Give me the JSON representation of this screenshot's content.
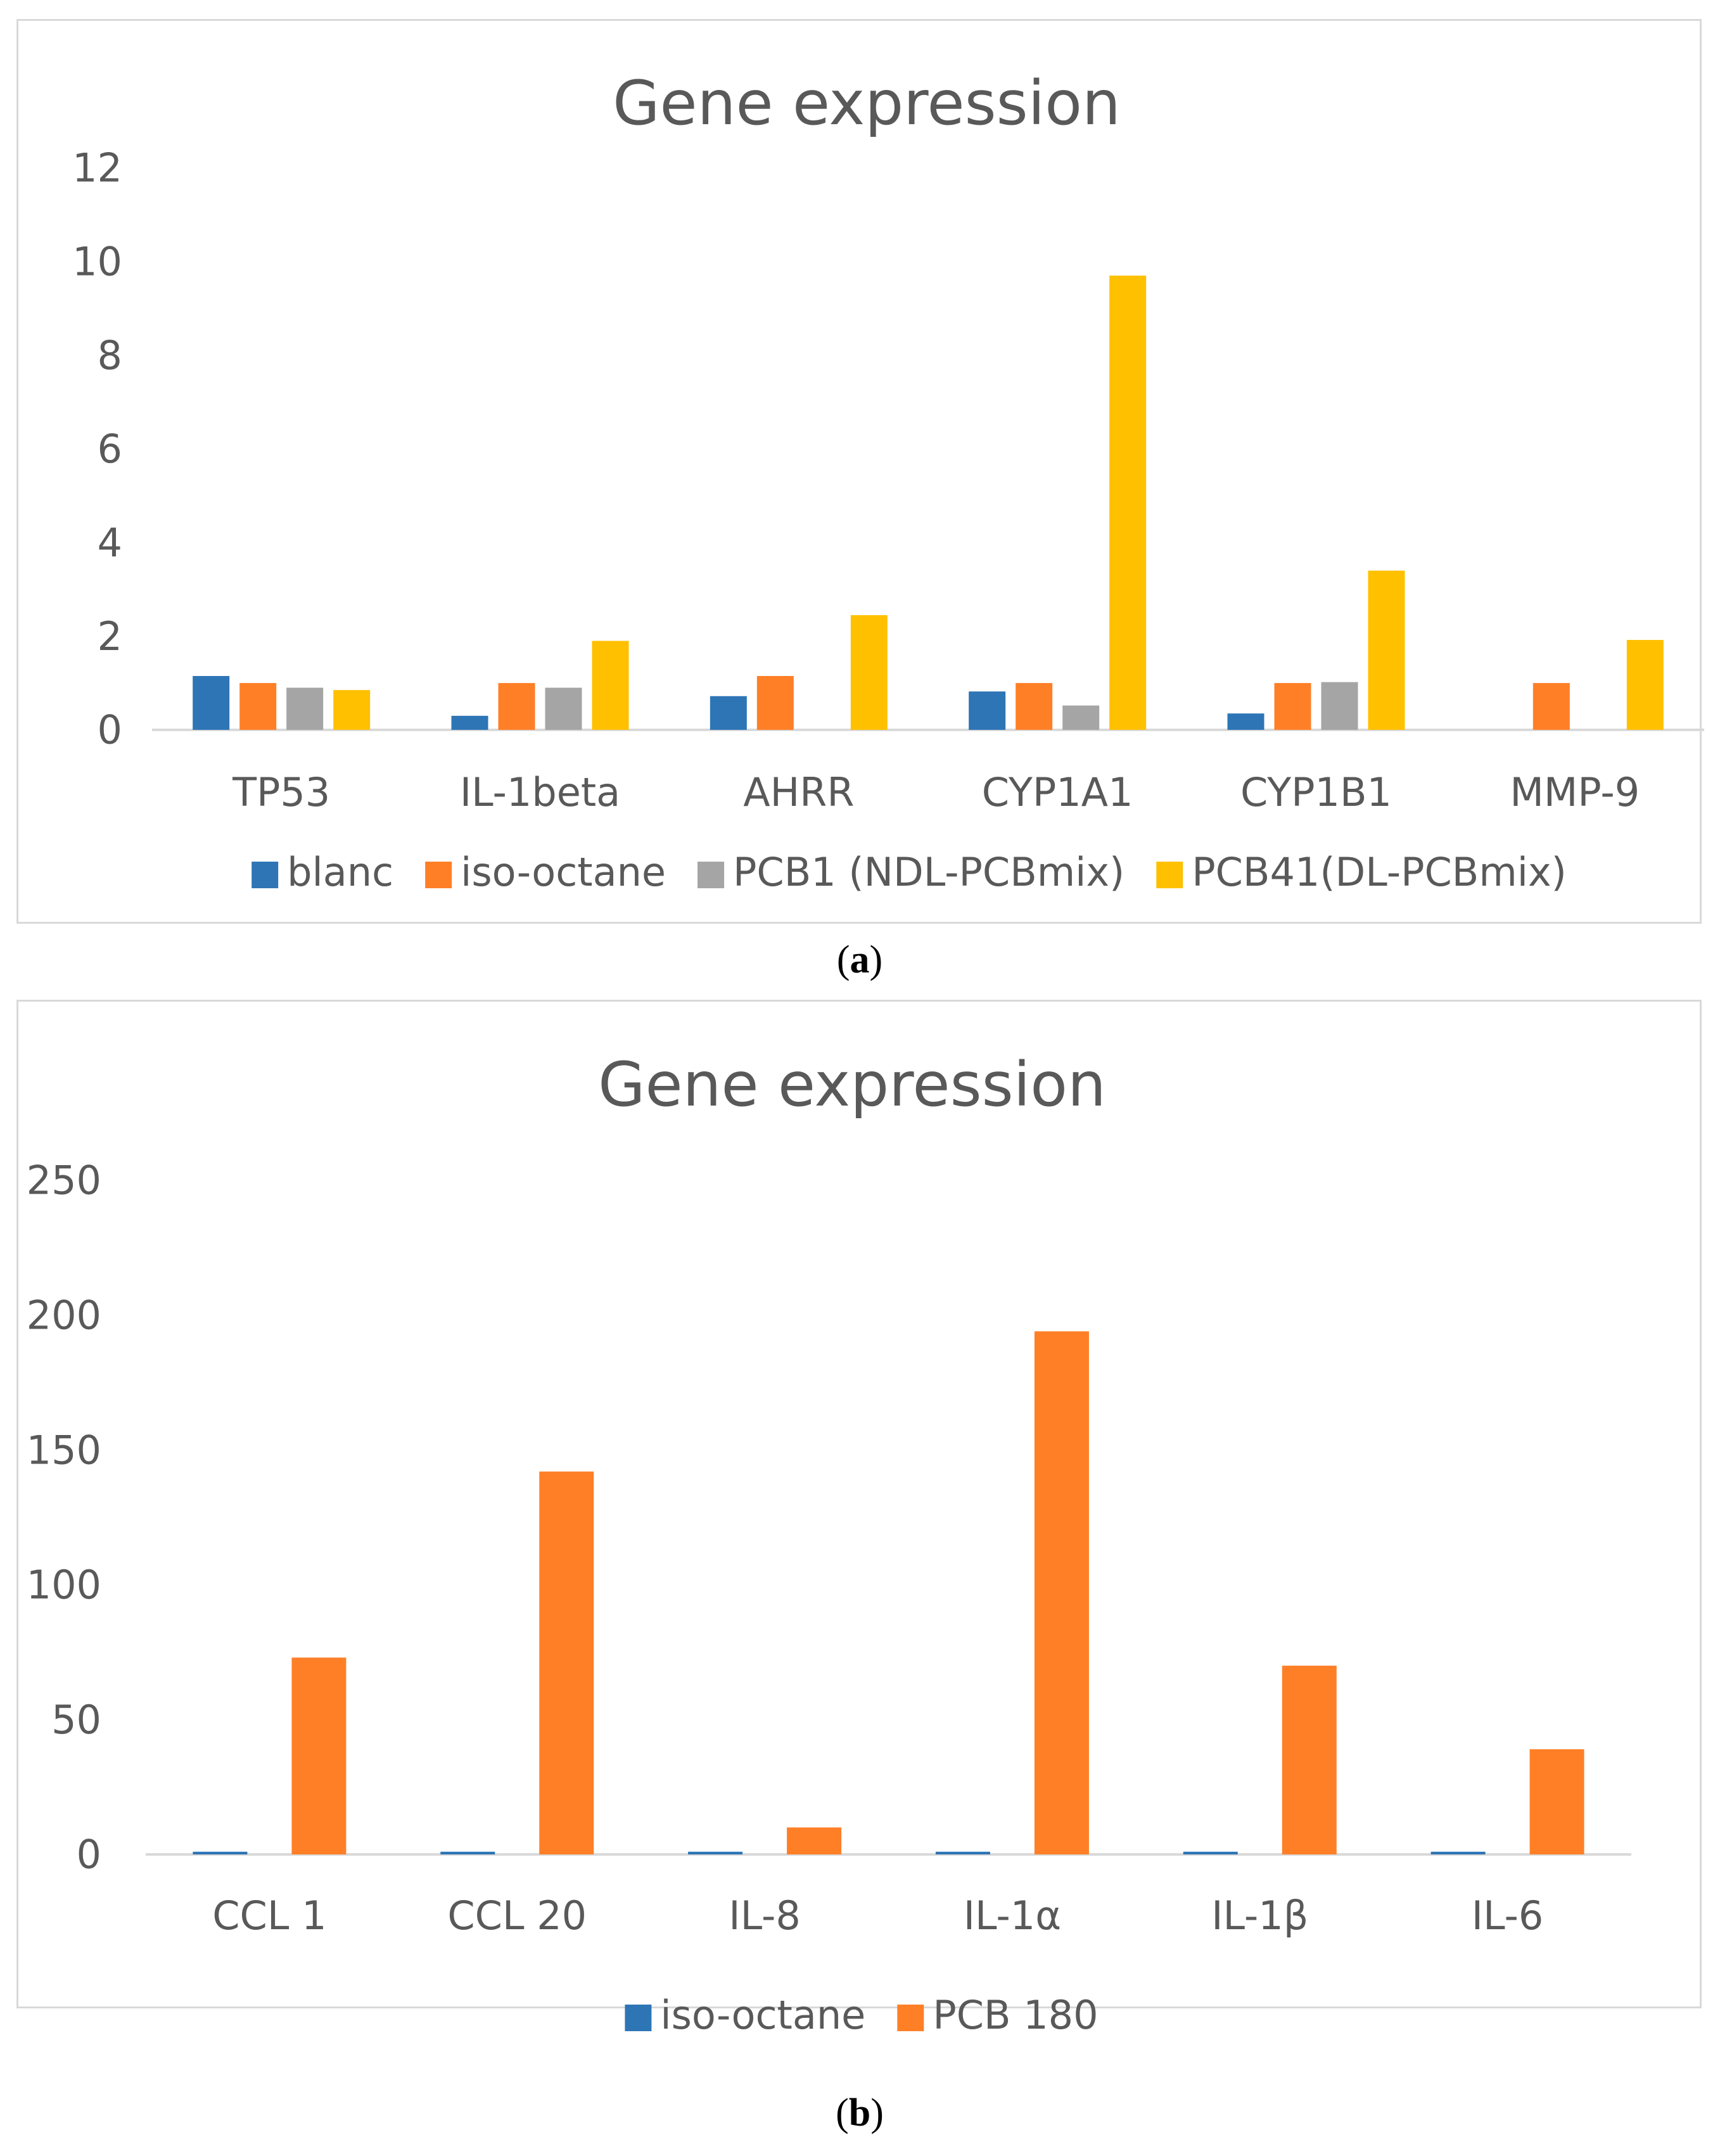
{
  "panels": {
    "a": {
      "label_open": "(",
      "label_letter": "a",
      "label_close": ")"
    },
    "b": {
      "label_open": "(",
      "label_letter": "b",
      "label_close": ")"
    }
  },
  "chart_data": [
    {
      "type": "bar",
      "title": "Gene expression",
      "xlabel": "",
      "ylabel": "",
      "ylim": [
        0,
        12
      ],
      "yticks": [
        0,
        2,
        4,
        6,
        8,
        10,
        12
      ],
      "grid": false,
      "legend": "bottom",
      "categories": [
        "TP53",
        "IL-1beta",
        "AHRR",
        "CYP1A1",
        "CYP1B1",
        "MMP-9"
      ],
      "series": [
        {
          "name": "blanc",
          "color": "#2e75b6",
          "values": [
            1.15,
            0.3,
            0.72,
            0.82,
            0.35,
            null
          ]
        },
        {
          "name": "iso-octane",
          "color": "#ff7f27",
          "values": [
            1.0,
            1.0,
            1.15,
            1.0,
            1.0,
            1.0
          ]
        },
        {
          "name": "PCB1 (NDL-PCBmix)",
          "color": "#a5a5a5",
          "values": [
            0.9,
            0.9,
            null,
            0.52,
            1.02,
            null
          ]
        },
        {
          "name": "PCB41(DL-PCBmix)",
          "color": "#ffc000",
          "values": [
            0.85,
            1.9,
            2.45,
            9.7,
            3.4,
            1.92
          ]
        }
      ]
    },
    {
      "type": "bar",
      "title": "Gene expression",
      "xlabel": "",
      "ylabel": "",
      "ylim": [
        0,
        250
      ],
      "yticks": [
        0,
        50,
        100,
        150,
        200,
        250
      ],
      "grid": false,
      "legend": "bottom",
      "categories": [
        "CCL 1",
        "CCL 20",
        "IL-8",
        "IL-1α",
        "IL-1β",
        "IL-6"
      ],
      "series": [
        {
          "name": "iso-octane",
          "color": "#2e75b6",
          "values": [
            1,
            1,
            1,
            1,
            1,
            1
          ]
        },
        {
          "name": "PCB 180",
          "color": "#ff7f27",
          "values": [
            73,
            142,
            10,
            194,
            70,
            39
          ]
        }
      ]
    }
  ]
}
